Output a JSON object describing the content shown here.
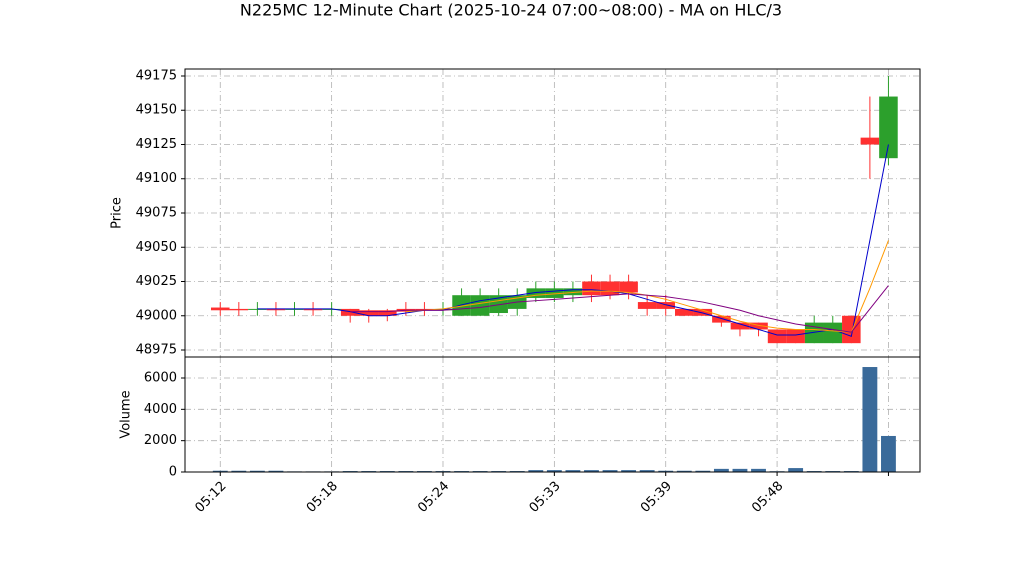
{
  "title": "N225MC 12-Minute Chart (2025-10-24 07:00~08:00) - MA on HLC/3",
  "chart_data": [
    {
      "type": "candlestick",
      "ylabel": "Price",
      "x": [
        0,
        1,
        2,
        3,
        4,
        5,
        6,
        7,
        8,
        9,
        10,
        11,
        12,
        13,
        14,
        15,
        16,
        17,
        18,
        19,
        20,
        21,
        22,
        23,
        24,
        25,
        26,
        27,
        28,
        29,
        30,
        31,
        32,
        33,
        34,
        35,
        36
      ],
      "open": [
        49006,
        49005,
        49005,
        49005,
        49005,
        49005,
        49005,
        49005,
        49004,
        49004,
        49005,
        49005,
        49004,
        49000,
        49000,
        49002,
        49005,
        49013,
        49013,
        49015,
        49025,
        49025,
        49025,
        49010,
        49010,
        49005,
        49005,
        49000,
        48995,
        48995,
        48990,
        48990,
        48980,
        48980,
        49000,
        49130,
        49115
      ],
      "high": [
        49010,
        49010,
        49010,
        49010,
        49010,
        49010,
        49010,
        49005,
        49005,
        49005,
        49010,
        49010,
        49010,
        49020,
        49020,
        49020,
        49020,
        49025,
        49025,
        49025,
        49030,
        49030,
        49030,
        49015,
        49015,
        49005,
        49005,
        49000,
        48995,
        48995,
        48990,
        48990,
        49000,
        49000,
        49000,
        49160,
        49175
      ],
      "low": [
        49000,
        49000,
        49000,
        49000,
        49000,
        49000,
        49000,
        48995,
        48995,
        48996,
        49000,
        49000,
        49000,
        49000,
        49000,
        49000,
        49000,
        49010,
        49010,
        49010,
        49010,
        49012,
        49012,
        49000,
        49000,
        49000,
        49000,
        48992,
        48985,
        48985,
        48980,
        48980,
        48980,
        48980,
        48980,
        49100,
        49110
      ],
      "close": [
        49004,
        49004,
        49005,
        49004,
        49005,
        49004,
        49005,
        49000,
        49000,
        49000,
        49003,
        49004,
        49005,
        49015,
        49015,
        49015,
        49015,
        49020,
        49020,
        49020,
        49015,
        49015,
        49017,
        49005,
        49005,
        49000,
        49000,
        48995,
        48990,
        48990,
        48980,
        48980,
        48995,
        48995,
        48980,
        49125,
        49160
      ],
      "up_color": "#2ca02c",
      "down_color": "#ff3030",
      "ma_lines": [
        {
          "color": "#0000cc",
          "values": [
            null,
            null,
            49005,
            49005,
            49005,
            49005,
            49005,
            49003,
            49000,
            49000,
            49002,
            49004,
            49004,
            49008,
            49011,
            49013,
            49015,
            49017,
            49018,
            49019,
            49019,
            49018,
            49016,
            49012,
            49008,
            49005,
            49002,
            48998,
            48994,
            48990,
            48986,
            48986,
            48988,
            48990,
            48985,
            49055,
            49125
          ]
        },
        {
          "color": "#ff9900",
          "values": [
            null,
            null,
            null,
            null,
            null,
            null,
            null,
            null,
            null,
            null,
            49003,
            49004,
            49005,
            49007,
            49009,
            49011,
            49013,
            49015,
            49016,
            49017,
            49018,
            49018,
            49017,
            49015,
            49012,
            49008,
            49004,
            49000,
            48996,
            48993,
            48991,
            48990,
            48990,
            48989,
            48988,
            49020,
            49055
          ]
        },
        {
          "color": "#800080",
          "values": [
            null,
            null,
            null,
            null,
            null,
            null,
            null,
            49003,
            49003,
            49003,
            49004,
            49004,
            49004,
            49005,
            49006,
            49008,
            49010,
            49011,
            49012,
            49013,
            49014,
            49015,
            49016,
            49015,
            49014,
            49012,
            49010,
            49007,
            49004,
            49000,
            48997,
            48994,
            48992,
            48990,
            48988,
            49005,
            49022
          ]
        }
      ],
      "ylim": [
        48969.9,
        49180.1
      ],
      "yticks": [
        48975,
        49000,
        49025,
        49050,
        49075,
        49100,
        49125,
        49150,
        49175
      ],
      "xlim": [
        -1.9,
        37.7
      ],
      "xticks": [
        0,
        6,
        12,
        18,
        24,
        30,
        36
      ],
      "grid": true
    },
    {
      "type": "bar",
      "ylabel": "Volume",
      "x": [
        0,
        1,
        2,
        3,
        4,
        5,
        6,
        7,
        8,
        9,
        10,
        11,
        12,
        13,
        14,
        15,
        16,
        17,
        18,
        19,
        20,
        21,
        22,
        23,
        24,
        25,
        26,
        27,
        28,
        29,
        30,
        31,
        32,
        33,
        34,
        35,
        36
      ],
      "values": [
        80,
        80,
        80,
        80,
        40,
        40,
        40,
        60,
        60,
        60,
        60,
        60,
        60,
        60,
        60,
        60,
        60,
        120,
        120,
        120,
        120,
        120,
        120,
        120,
        80,
        80,
        80,
        200,
        200,
        200,
        50,
        250,
        60,
        60,
        60,
        6700,
        2300
      ],
      "color": "#3a6a9a",
      "ylim": [
        0,
        7340
      ],
      "yticks": [
        0,
        2000,
        4000,
        6000
      ],
      "xlim": [
        -1.9,
        37.7
      ],
      "xticks": [
        {
          "value": 0,
          "label": "05:12"
        },
        {
          "value": 6,
          "label": "05:18"
        },
        {
          "value": 12,
          "label": "05:24"
        },
        {
          "value": 18,
          "label": "05:33"
        },
        {
          "value": 24,
          "label": "05:39"
        },
        {
          "value": 30,
          "label": "05:48"
        },
        {
          "value": 36,
          "label": null
        }
      ],
      "grid": true
    }
  ]
}
